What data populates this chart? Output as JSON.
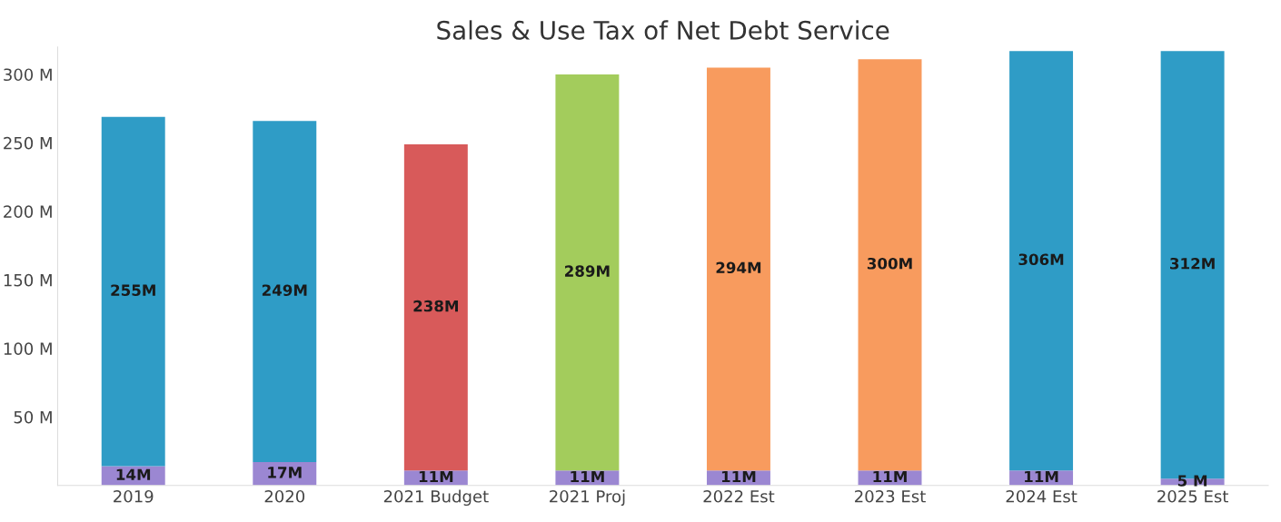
{
  "chart_data": {
    "type": "bar",
    "title": "Sales & Use Tax of Net Debt Service",
    "stacked": true,
    "categories": [
      "2019",
      "2020",
      "2021 Budget",
      "2021 Proj",
      "2022 Est",
      "2023 Est",
      "2024 Est",
      "2025 Est"
    ],
    "series": [
      {
        "colors": [
          "#9b87d2",
          "#9b87d2",
          "#9b87d2",
          "#9b87d2",
          "#9b87d2",
          "#9b87d2",
          "#9b87d2",
          "#9b87d2"
        ],
        "values": [
          14,
          17,
          11,
          11,
          11,
          11,
          11,
          5
        ],
        "value_labels": [
          "14M",
          "17M",
          "11M",
          "11M",
          "11M",
          "11M",
          "11M",
          "5 M"
        ]
      },
      {
        "colors": [
          "#2f9cc6",
          "#2f9cc6",
          "#d85a5a",
          "#a3cc5c",
          "#f89b5e",
          "#f89b5e",
          "#2f9cc6",
          "#2f9cc6"
        ],
        "values": [
          255,
          249,
          238,
          289,
          294,
          300,
          306,
          312
        ],
        "value_labels": [
          "255M",
          "249M",
          "238M",
          "289M",
          "294M",
          "300M",
          "306M",
          "312M"
        ]
      }
    ],
    "ylim": [
      0,
      320
    ],
    "yticks": [
      {
        "value": 50,
        "label": "50 M"
      },
      {
        "value": 100,
        "label": "100 M"
      },
      {
        "value": 150,
        "label": "150 M"
      },
      {
        "value": 200,
        "label": "200 M"
      },
      {
        "value": 250,
        "label": "250 M"
      },
      {
        "value": 300,
        "label": "300 M"
      }
    ],
    "grid": false,
    "legend": false
  }
}
